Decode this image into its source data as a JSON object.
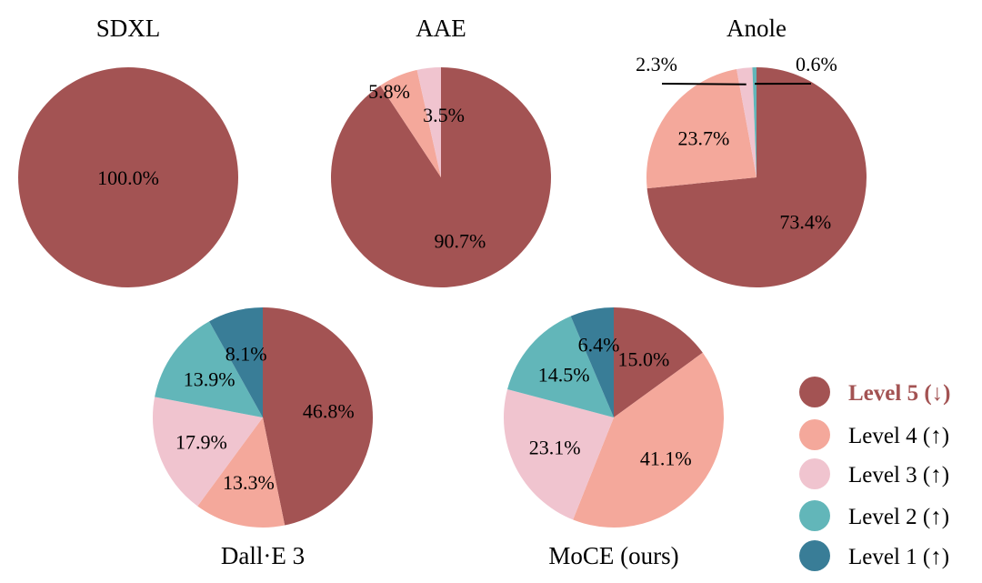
{
  "chart_data": {
    "type": "pie",
    "categories": [
      "Level 5 (↓)",
      "Level 4 (↑)",
      "Level 3 (↑)",
      "Level 2 (↑)",
      "Level 1 (↑)"
    ],
    "colors": [
      "#a35353",
      "#f4a89b",
      "#f0c4cf",
      "#62b6b9",
      "#397d97"
    ],
    "legend_placement": "bottom-right",
    "charts": [
      {
        "title": "SDXL",
        "values": [
          100.0,
          0,
          0,
          0,
          0
        ],
        "labels": [
          "100.0%",
          "",
          "",
          "",
          ""
        ]
      },
      {
        "title": "AAE",
        "values": [
          90.7,
          5.8,
          3.5,
          0,
          0
        ],
        "labels": [
          "90.7%",
          "5.8%",
          "3.5%",
          "",
          ""
        ]
      },
      {
        "title": "Anole",
        "values": [
          73.4,
          23.7,
          2.3,
          0.6,
          0
        ],
        "labels": [
          "73.4%",
          "23.7%",
          "2.3%",
          "0.6%",
          ""
        ]
      },
      {
        "title": "Dall·E 3",
        "values": [
          46.8,
          13.3,
          17.9,
          13.9,
          8.1
        ],
        "labels": [
          "46.8%",
          "13.3%",
          "17.9%",
          "13.9%",
          "8.1%"
        ]
      },
      {
        "title": "MoCE (ours)",
        "values": [
          15.0,
          41.1,
          23.1,
          14.5,
          6.4
        ],
        "labels": [
          "15.0%",
          "41.1%",
          "23.1%",
          "14.5%",
          "6.4%"
        ]
      }
    ]
  }
}
